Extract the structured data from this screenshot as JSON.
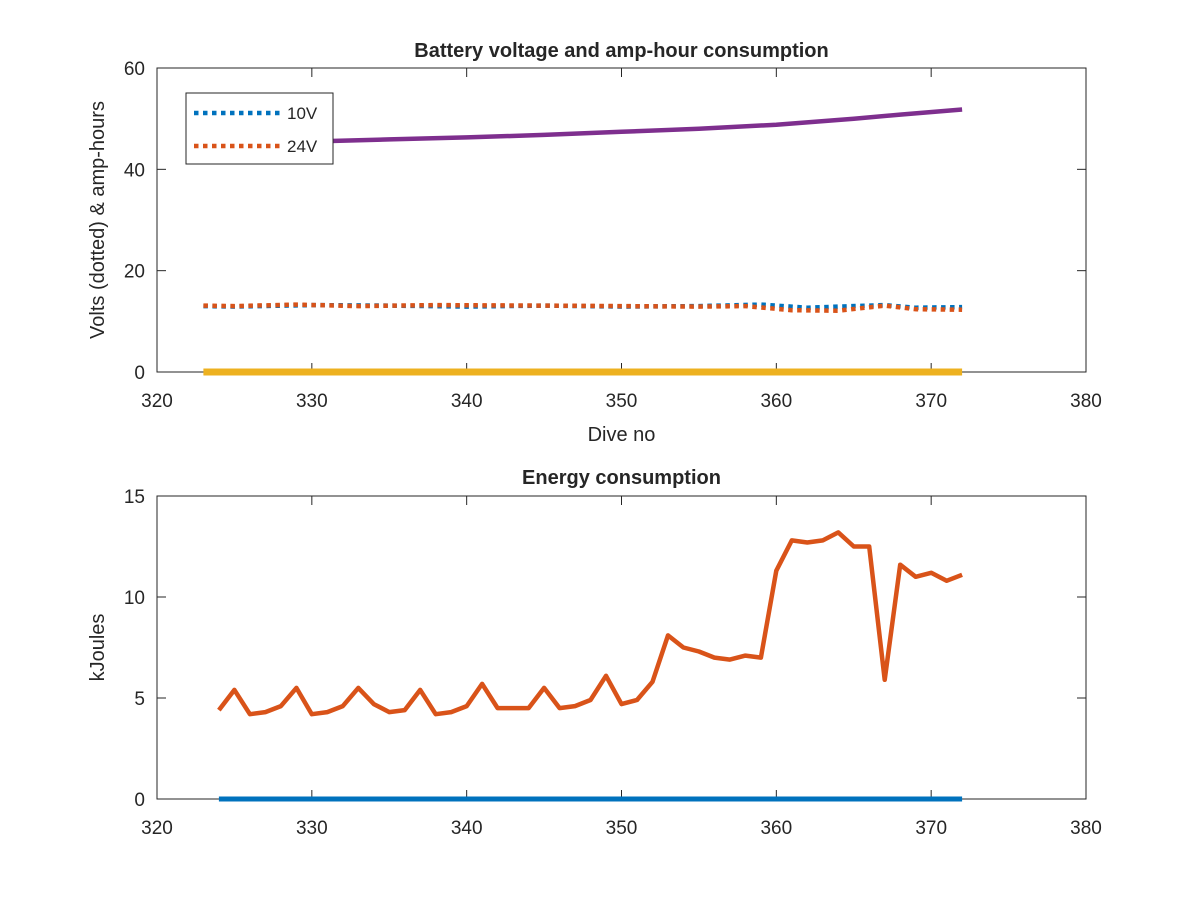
{
  "chart_data": [
    {
      "type": "line",
      "title": "Battery voltage and amp-hour consumption",
      "xlabel": "Dive no",
      "ylabel": "Volts (dotted) & amp-hours",
      "xlim": [
        320,
        380
      ],
      "ylim": [
        0,
        60
      ],
      "xticks": [
        320,
        330,
        340,
        350,
        360,
        370,
        380
      ],
      "yticks": [
        0,
        20,
        40,
        60
      ],
      "grid": false,
      "legend_position": "top-left",
      "series": [
        {
          "name": "10V",
          "color": "#0072BD",
          "style": "dotted",
          "x": [
            323,
            325,
            330,
            335,
            340,
            345,
            350,
            355,
            359,
            362,
            364,
            367,
            369,
            372
          ],
          "y": [
            13.0,
            12.9,
            13.2,
            13.1,
            12.9,
            13.1,
            12.9,
            13.0,
            13.3,
            12.7,
            12.9,
            13.2,
            12.7,
            12.8
          ]
        },
        {
          "name": "24V",
          "color": "#D95319",
          "style": "dotted",
          "x": [
            323,
            325,
            329,
            333,
            338,
            345,
            350,
            355,
            358,
            361,
            364,
            367,
            369,
            372
          ],
          "y": [
            13.1,
            13.0,
            13.3,
            13.0,
            13.2,
            13.1,
            13.0,
            12.9,
            13.0,
            12.2,
            12.1,
            13.1,
            12.4,
            12.3
          ]
        },
        {
          "color": "#7E2F8E",
          "style": "solid",
          "x": [
            323,
            325,
            330,
            335,
            340,
            345,
            350,
            355,
            360,
            365,
            368,
            372
          ],
          "y": [
            45.0,
            45.2,
            45.5,
            45.9,
            46.3,
            46.8,
            47.4,
            48.0,
            48.8,
            50.0,
            50.8,
            51.8
          ]
        },
        {
          "color": "#EDB120",
          "style": "solid",
          "x": [
            323,
            372
          ],
          "y": [
            0,
            0
          ]
        }
      ]
    },
    {
      "type": "line",
      "title": "Energy consumption",
      "xlabel": "",
      "ylabel": "kJoules",
      "xlim": [
        320,
        380
      ],
      "ylim": [
        0,
        15
      ],
      "xticks": [
        320,
        330,
        340,
        350,
        360,
        370,
        380
      ],
      "yticks": [
        0,
        5,
        10,
        15
      ],
      "grid": false,
      "series": [
        {
          "color": "#D95319",
          "style": "solid",
          "x": [
            324,
            325,
            326,
            327,
            328,
            329,
            330,
            331,
            332,
            333,
            334,
            335,
            336,
            337,
            338,
            339,
            340,
            341,
            342,
            343,
            344,
            345,
            346,
            347,
            348,
            349,
            350,
            351,
            352,
            353,
            354,
            355,
            356,
            357,
            358,
            359,
            360,
            361,
            362,
            363,
            364,
            365,
            366,
            367,
            368,
            369,
            370,
            371,
            372
          ],
          "y": [
            4.4,
            5.4,
            4.2,
            4.3,
            4.6,
            5.5,
            4.2,
            4.3,
            4.6,
            5.5,
            4.7,
            4.3,
            4.4,
            5.4,
            4.2,
            4.3,
            4.6,
            5.7,
            4.5,
            4.5,
            4.5,
            5.5,
            4.5,
            4.6,
            4.9,
            6.1,
            4.7,
            4.9,
            5.8,
            8.1,
            7.5,
            7.3,
            7.0,
            6.9,
            7.1,
            7.0,
            11.3,
            12.8,
            12.7,
            12.8,
            13.2,
            12.5,
            12.5,
            5.9,
            11.6,
            11.0,
            11.2,
            10.8,
            11.1
          ]
        },
        {
          "color": "#0072BD",
          "style": "solid",
          "x": [
            324,
            372
          ],
          "y": [
            0,
            0
          ]
        }
      ]
    }
  ]
}
